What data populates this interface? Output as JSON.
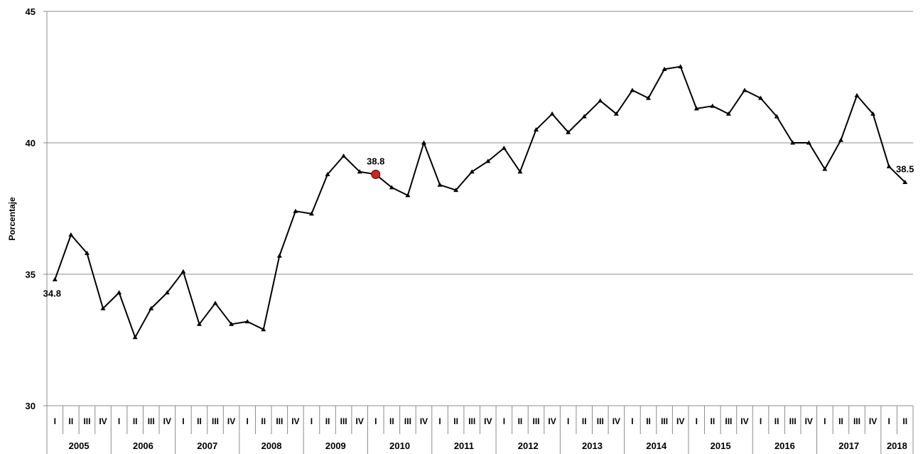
{
  "chart_data": {
    "type": "line",
    "title": "",
    "xlabel": "",
    "ylabel": "Porcentaje",
    "ylim": [
      30,
      45
    ],
    "yticks": [
      30,
      35,
      40,
      45
    ],
    "grid": true,
    "legend": "none",
    "quarter_labels": [
      "I",
      "II",
      "III",
      "IV"
    ],
    "years": [
      "2005",
      "2006",
      "2007",
      "2008",
      "2009",
      "2010",
      "2011",
      "2012",
      "2013",
      "2014",
      "2015",
      "2016",
      "2017",
      "2018"
    ],
    "x": [
      "2005-I",
      "2005-II",
      "2005-III",
      "2005-IV",
      "2006-I",
      "2006-II",
      "2006-III",
      "2006-IV",
      "2007-I",
      "2007-II",
      "2007-III",
      "2007-IV",
      "2008-I",
      "2008-II",
      "2008-III",
      "2008-IV",
      "2009-I",
      "2009-II",
      "2009-III",
      "2009-IV",
      "2010-I",
      "2010-II",
      "2010-III",
      "2010-IV",
      "2011-I",
      "2011-II",
      "2011-III",
      "2011-IV",
      "2012-I",
      "2012-II",
      "2012-III",
      "2012-IV",
      "2013-I",
      "2013-II",
      "2013-III",
      "2013-IV",
      "2014-I",
      "2014-II",
      "2014-III",
      "2014-IV",
      "2015-I",
      "2015-II",
      "2015-III",
      "2015-IV",
      "2016-I",
      "2016-II",
      "2016-III",
      "2016-IV",
      "2017-I",
      "2017-II",
      "2017-III",
      "2017-IV",
      "2018-I",
      "2018-II"
    ],
    "series": [
      {
        "color": "#000000",
        "values": [
          34.8,
          36.5,
          35.8,
          33.7,
          34.3,
          32.6,
          33.7,
          34.3,
          35.1,
          33.1,
          33.9,
          33.1,
          33.2,
          32.9,
          35.7,
          37.4,
          37.3,
          38.8,
          39.5,
          38.9,
          38.8,
          38.3,
          38.0,
          40.0,
          38.4,
          38.2,
          38.9,
          39.3,
          39.8,
          38.9,
          40.5,
          41.1,
          40.4,
          41.0,
          41.6,
          41.1,
          42.0,
          41.7,
          42.8,
          42.9,
          41.3,
          41.4,
          41.1,
          42.0,
          41.7,
          41.0,
          40.0,
          40.0,
          39.0,
          40.1,
          41.8,
          41.1,
          39.1,
          38.5
        ]
      }
    ],
    "highlight": {
      "index": 20,
      "color": "#c62828"
    },
    "annotations": [
      {
        "index": 0,
        "text": "34.8"
      },
      {
        "index": 20,
        "text": "38.8"
      },
      {
        "index": 53,
        "text": "38.5"
      }
    ]
  }
}
